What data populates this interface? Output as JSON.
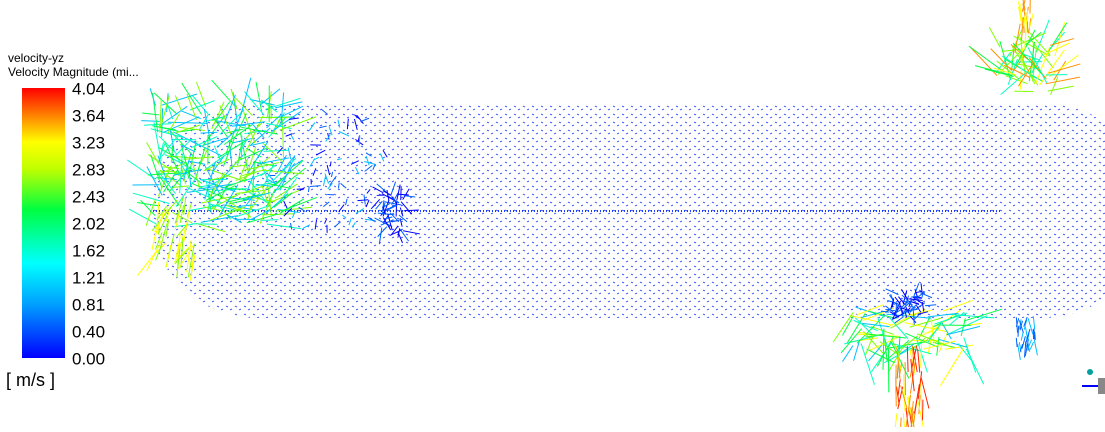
{
  "legend": {
    "title": "velocity-yz",
    "subtitle": "Velocity Magnitude (mi...",
    "ticks": [
      "4.04",
      "3.64",
      "3.23",
      "2.83",
      "2.43",
      "2.02",
      "1.62",
      "1.21",
      "0.81",
      "0.40",
      "0.00"
    ],
    "unit": "[ m/s ]"
  }
}
